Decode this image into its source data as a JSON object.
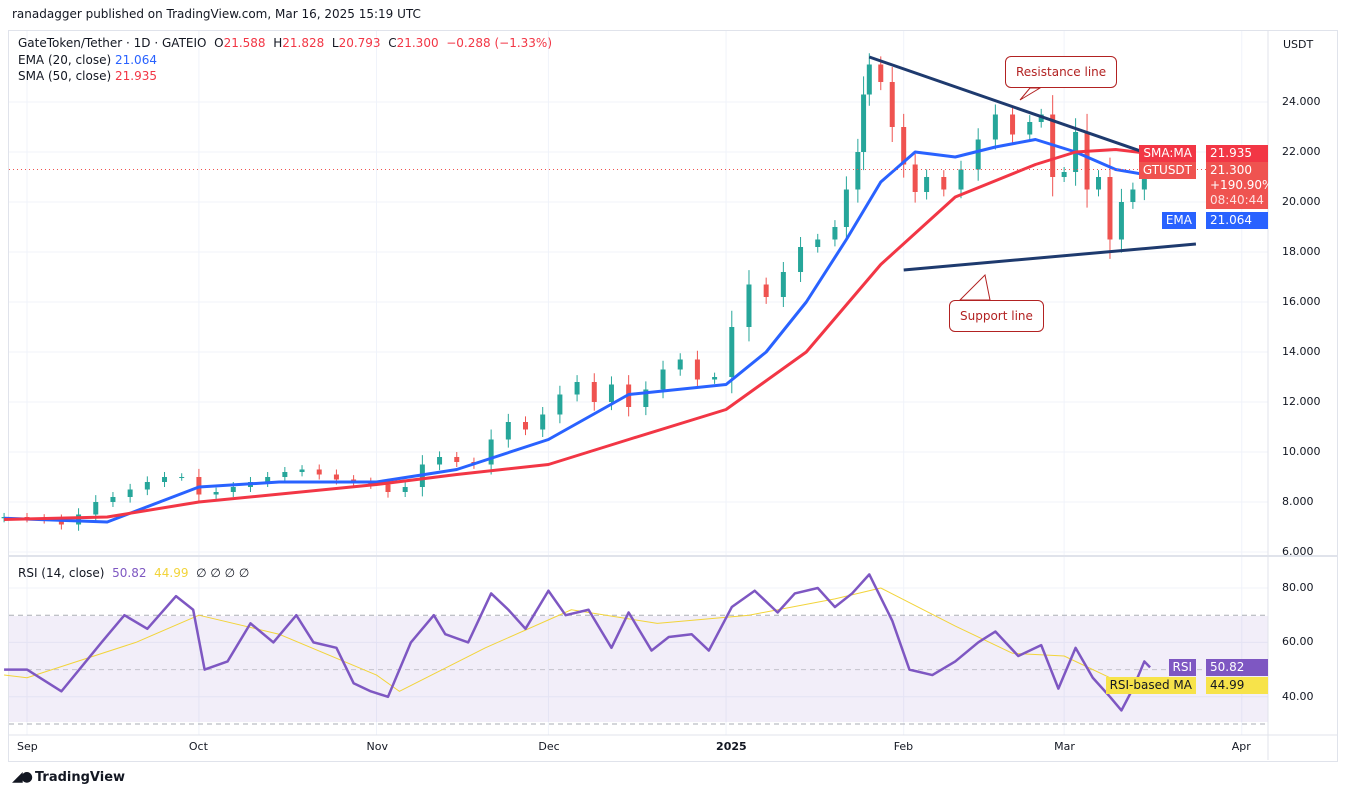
{
  "publisher": "ranadagger published on TradingView.com, Mar 16, 2025 15:19 UTC",
  "legend": {
    "symbol": "GateToken/Tether · 1D · GATEIO",
    "open_label": "O",
    "open": "21.588",
    "high_label": "H",
    "high": "21.828",
    "low_label": "L",
    "low": "20.793",
    "close_label": "C",
    "close": "21.300",
    "change": "−0.288 (−1.33%)",
    "ema_label": "EMA (20, close)",
    "ema_value": "21.064",
    "sma_label": "SMA (50, close)",
    "sma_value": "21.935",
    "rsi_label": "RSI (14, close)",
    "rsi_value": "50.82",
    "rsi_ma_value": "44.99",
    "rsi_extra": "∅  ∅  ∅  ∅"
  },
  "price_axis": {
    "currency": "USDT",
    "ticks": [
      "24.000",
      "22.000",
      "20.000",
      "18.000",
      "16.000",
      "14.000",
      "12.000",
      "10.000",
      "8.000",
      "6.000"
    ],
    "tags": {
      "sma_name": "SMA:MA",
      "sma_value": "21.935",
      "symbol_name": "GTUSDT",
      "price": "21.300",
      "change_pct": "+190.90%",
      "countdown": "08:40:44",
      "ema_name": "EMA",
      "ema_value": "21.064"
    }
  },
  "rsi_axis": {
    "ticks": [
      "80.00",
      "60.00",
      "40.00"
    ],
    "tags": {
      "rsi_name": "RSI",
      "rsi_value": "50.82",
      "ma_name": "RSI-based MA",
      "ma_value": "44.99"
    }
  },
  "time_axis": {
    "ticks": [
      "Sep",
      "Oct",
      "Nov",
      "Dec",
      "2025",
      "Feb",
      "Mar",
      "Apr"
    ]
  },
  "annotations": {
    "resistance": "Resistance line",
    "support": "Support line"
  },
  "footer": {
    "brand": "TradingView"
  },
  "colors": {
    "up": "#26a69a",
    "down": "#ef5350",
    "ema": "#2962ff",
    "sma": "#f23645",
    "rsi": "#7e57c2",
    "rsi_ma": "#f2d43a",
    "trendline": "#1e3a6e"
  },
  "chart_data": {
    "type": "candlestick",
    "symbol": "GTUSDT",
    "interval": "1D",
    "y_range": [
      6,
      26
    ],
    "x_range": [
      "2024-08-28",
      "2025-04-04"
    ],
    "grid": true,
    "closes": [
      [
        "2024-08-28",
        7.4
      ],
      [
        "2024-09-01",
        7.35
      ],
      [
        "2024-09-04",
        7.3
      ],
      [
        "2024-09-07",
        7.1
      ],
      [
        "2024-09-10",
        7.5
      ],
      [
        "2024-09-13",
        8.0
      ],
      [
        "2024-09-16",
        8.2
      ],
      [
        "2024-09-19",
        8.5
      ],
      [
        "2024-09-22",
        8.8
      ],
      [
        "2024-09-25",
        9.0
      ],
      [
        "2024-09-28",
        9.0
      ],
      [
        "2024-10-01",
        8.3
      ],
      [
        "2024-10-04",
        8.4
      ],
      [
        "2024-10-07",
        8.6
      ],
      [
        "2024-10-10",
        8.8
      ],
      [
        "2024-10-13",
        9.0
      ],
      [
        "2024-10-16",
        9.2
      ],
      [
        "2024-10-19",
        9.3
      ],
      [
        "2024-10-22",
        9.1
      ],
      [
        "2024-10-25",
        8.9
      ],
      [
        "2024-10-28",
        8.8
      ],
      [
        "2024-10-31",
        8.7
      ],
      [
        "2024-11-03",
        8.4
      ],
      [
        "2024-11-06",
        8.6
      ],
      [
        "2024-11-09",
        9.5
      ],
      [
        "2024-11-12",
        9.8
      ],
      [
        "2024-11-15",
        9.6
      ],
      [
        "2024-11-18",
        9.5
      ],
      [
        "2024-11-21",
        10.5
      ],
      [
        "2024-11-24",
        11.2
      ],
      [
        "2024-11-27",
        10.9
      ],
      [
        "2024-11-30",
        11.5
      ],
      [
        "2024-12-03",
        12.3
      ],
      [
        "2024-12-06",
        12.8
      ],
      [
        "2024-12-09",
        12.0
      ],
      [
        "2024-12-12",
        12.7
      ],
      [
        "2024-12-15",
        11.8
      ],
      [
        "2024-12-18",
        12.5
      ],
      [
        "2024-12-21",
        13.3
      ],
      [
        "2024-12-24",
        13.7
      ],
      [
        "2024-12-27",
        12.9
      ],
      [
        "2024-12-30",
        13.0
      ],
      [
        "2025-01-02",
        15.0
      ],
      [
        "2025-01-05",
        16.7
      ],
      [
        "2025-01-08",
        16.2
      ],
      [
        "2025-01-11",
        17.2
      ],
      [
        "2025-01-14",
        18.2
      ],
      [
        "2025-01-17",
        18.5
      ],
      [
        "2025-01-20",
        19.0
      ],
      [
        "2025-01-22",
        20.5
      ],
      [
        "2025-01-24",
        22.0
      ],
      [
        "2025-01-25",
        24.3
      ],
      [
        "2025-01-26",
        25.5
      ],
      [
        "2025-01-28",
        24.8
      ],
      [
        "2025-01-30",
        23.0
      ],
      [
        "2025-02-01",
        21.5
      ],
      [
        "2025-02-03",
        20.4
      ],
      [
        "2025-02-05",
        21.0
      ],
      [
        "2025-02-08",
        20.5
      ],
      [
        "2025-02-11",
        21.3
      ],
      [
        "2025-02-14",
        22.5
      ],
      [
        "2025-02-17",
        23.5
      ],
      [
        "2025-02-20",
        22.7
      ],
      [
        "2025-02-23",
        23.2
      ],
      [
        "2025-02-25",
        23.5
      ],
      [
        "2025-02-27",
        21.0
      ],
      [
        "2025-03-01",
        21.2
      ],
      [
        "2025-03-03",
        22.8
      ],
      [
        "2025-03-05",
        20.5
      ],
      [
        "2025-03-07",
        21.0
      ],
      [
        "2025-03-09",
        18.5
      ],
      [
        "2025-03-11",
        20.0
      ],
      [
        "2025-03-13",
        20.5
      ],
      [
        "2025-03-15",
        21.6
      ],
      [
        "2025-03-16",
        21.3
      ]
    ],
    "ema20": [
      [
        "2024-08-28",
        7.35
      ],
      [
        "2024-09-15",
        7.2
      ],
      [
        "2024-10-01",
        8.6
      ],
      [
        "2024-10-15",
        8.8
      ],
      [
        "2024-11-01",
        8.8
      ],
      [
        "2024-11-15",
        9.3
      ],
      [
        "2024-12-01",
        10.5
      ],
      [
        "2024-12-15",
        12.3
      ],
      [
        "2025-01-01",
        12.7
      ],
      [
        "2025-01-08",
        14.0
      ],
      [
        "2025-01-15",
        16.0
      ],
      [
        "2025-01-22",
        18.5
      ],
      [
        "2025-01-28",
        20.8
      ],
      [
        "2025-02-03",
        22.0
      ],
      [
        "2025-02-10",
        21.8
      ],
      [
        "2025-02-17",
        22.2
      ],
      [
        "2025-02-24",
        22.5
      ],
      [
        "2025-03-03",
        22.0
      ],
      [
        "2025-03-10",
        21.3
      ],
      [
        "2025-03-16",
        21.064
      ]
    ],
    "sma50": [
      [
        "2024-08-28",
        7.3
      ],
      [
        "2024-09-15",
        7.4
      ],
      [
        "2024-10-01",
        8.0
      ],
      [
        "2024-11-01",
        8.7
      ],
      [
        "2024-11-15",
        9.1
      ],
      [
        "2024-12-01",
        9.5
      ],
      [
        "2024-12-15",
        10.5
      ],
      [
        "2025-01-01",
        11.7
      ],
      [
        "2025-01-15",
        14.0
      ],
      [
        "2025-01-28",
        17.5
      ],
      [
        "2025-02-10",
        20.2
      ],
      [
        "2025-02-24",
        21.5
      ],
      [
        "2025-03-03",
        22.0
      ],
      [
        "2025-03-10",
        22.1
      ],
      [
        "2025-03-16",
        21.935
      ]
    ],
    "trendlines": [
      {
        "name": "Resistance line",
        "from": [
          "2025-01-26",
          25.8
        ],
        "to": [
          "2025-03-23",
          21.35
        ]
      },
      {
        "name": "Support line",
        "from": [
          "2025-02-01",
          17.28
        ],
        "to": [
          "2025-03-24",
          18.32
        ]
      }
    ],
    "last_price": 21.3,
    "rsi": {
      "y_range": [
        25,
        90
      ],
      "bands": [
        30,
        50,
        70
      ],
      "values": [
        [
          "2024-08-28",
          50
        ],
        [
          "2024-09-01",
          50
        ],
        [
          "2024-09-07",
          42
        ],
        [
          "2024-09-14",
          60
        ],
        [
          "2024-09-18",
          70
        ],
        [
          "2024-09-22",
          65
        ],
        [
          "2024-09-27",
          77
        ],
        [
          "2024-09-30",
          72
        ],
        [
          "2024-10-02",
          50
        ],
        [
          "2024-10-06",
          53
        ],
        [
          "2024-10-10",
          67
        ],
        [
          "2024-10-14",
          60
        ],
        [
          "2024-10-18",
          70
        ],
        [
          "2024-10-21",
          60
        ],
        [
          "2024-10-25",
          58
        ],
        [
          "2024-10-28",
          45
        ],
        [
          "2024-10-31",
          42
        ],
        [
          "2024-11-03",
          40
        ],
        [
          "2024-11-07",
          60
        ],
        [
          "2024-11-11",
          70
        ],
        [
          "2024-11-13",
          63
        ],
        [
          "2024-11-17",
          60
        ],
        [
          "2024-11-21",
          78
        ],
        [
          "2024-11-24",
          72
        ],
        [
          "2024-11-27",
          65
        ],
        [
          "2024-12-01",
          79
        ],
        [
          "2024-12-04",
          70
        ],
        [
          "2024-12-08",
          72
        ],
        [
          "2024-12-12",
          58
        ],
        [
          "2024-12-15",
          71
        ],
        [
          "2024-12-19",
          57
        ],
        [
          "2024-12-22",
          62
        ],
        [
          "2024-12-26",
          63
        ],
        [
          "2024-12-29",
          57
        ],
        [
          "2025-01-02",
          73
        ],
        [
          "2025-01-06",
          79
        ],
        [
          "2025-01-10",
          71
        ],
        [
          "2025-01-13",
          78
        ],
        [
          "2025-01-17",
          80
        ],
        [
          "2025-01-20",
          73
        ],
        [
          "2025-01-23",
          78
        ],
        [
          "2025-01-26",
          85
        ],
        [
          "2025-01-30",
          68
        ],
        [
          "2025-02-02",
          50
        ],
        [
          "2025-02-06",
          48
        ],
        [
          "2025-02-10",
          53
        ],
        [
          "2025-02-14",
          60
        ],
        [
          "2025-02-17",
          64
        ],
        [
          "2025-02-21",
          55
        ],
        [
          "2025-02-25",
          59
        ],
        [
          "2025-02-28",
          43
        ],
        [
          "2025-03-03",
          58
        ],
        [
          "2025-03-06",
          47
        ],
        [
          "2025-03-09",
          40
        ],
        [
          "2025-03-11",
          35
        ],
        [
          "2025-03-13",
          43
        ],
        [
          "2025-03-15",
          53
        ],
        [
          "2025-03-16",
          50.82
        ]
      ],
      "ma": [
        [
          "2024-08-28",
          48
        ],
        [
          "2024-09-01",
          47
        ],
        [
          "2024-09-20",
          60
        ],
        [
          "2024-10-01",
          70
        ],
        [
          "2024-10-15",
          63
        ],
        [
          "2024-11-01",
          48
        ],
        [
          "2024-11-05",
          42
        ],
        [
          "2024-11-20",
          58
        ],
        [
          "2024-12-05",
          72
        ],
        [
          "2024-12-20",
          67
        ],
        [
          "2025-01-05",
          70
        ],
        [
          "2025-01-20",
          76
        ],
        [
          "2025-01-28",
          80
        ],
        [
          "2025-02-10",
          66
        ],
        [
          "2025-02-20",
          56
        ],
        [
          "2025-03-01",
          55
        ],
        [
          "2025-03-10",
          46
        ],
        [
          "2025-03-16",
          44.99
        ]
      ]
    }
  }
}
